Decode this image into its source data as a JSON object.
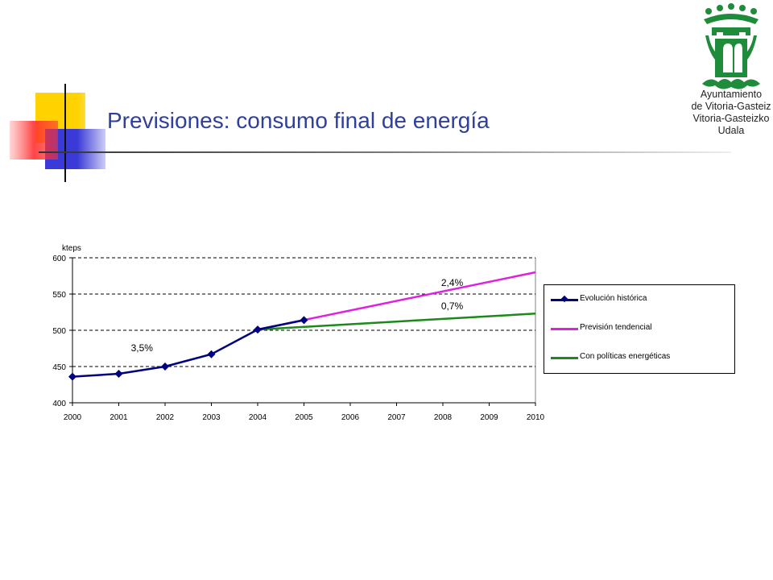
{
  "slide": {
    "title": "Previsiones: consumo final de energía",
    "logo_text": [
      "Ayuntamiento",
      "de Vitoria-Gasteiz",
      "Vitoria-Gasteizko",
      "Udala"
    ]
  },
  "colors": {
    "title": "#2e3f9c",
    "historic": "#000080",
    "trend": "#e020e0",
    "policy": "#1a8a1a",
    "logo": "#1e8c3a"
  },
  "chart_data": {
    "type": "line",
    "ylabel": "kteps",
    "xlabel": "",
    "ylim": [
      400,
      600
    ],
    "yticks": [
      400,
      450,
      500,
      550,
      600
    ],
    "x": [
      2000,
      2001,
      2002,
      2003,
      2004,
      2005,
      2006,
      2007,
      2008,
      2009,
      2010
    ],
    "grid": "horizontal-dashed",
    "legend_position": "right",
    "series": [
      {
        "name": "Evolución histórica",
        "color": "#000080",
        "marker": "diamond",
        "points": [
          [
            2000,
            436
          ],
          [
            2001,
            440
          ],
          [
            2002,
            450
          ],
          [
            2003,
            467
          ],
          [
            2004,
            501
          ],
          [
            2005,
            514
          ]
        ]
      },
      {
        "name": "Previsión tendencial",
        "color": "#e020e0",
        "marker": "none",
        "points": [
          [
            2004,
            501
          ],
          [
            2010,
            580
          ]
        ]
      },
      {
        "name": "Con políticas energéticas",
        "color": "#1a8a1a",
        "marker": "none",
        "points": [
          [
            2004,
            501
          ],
          [
            2010,
            523
          ]
        ]
      }
    ],
    "annotations": [
      {
        "text": "3,5%",
        "x": 2001.5,
        "y": 471
      },
      {
        "text": "2,4%",
        "x": 2008.2,
        "y": 561
      },
      {
        "text": "0,7%",
        "x": 2008.2,
        "y": 529
      }
    ]
  }
}
